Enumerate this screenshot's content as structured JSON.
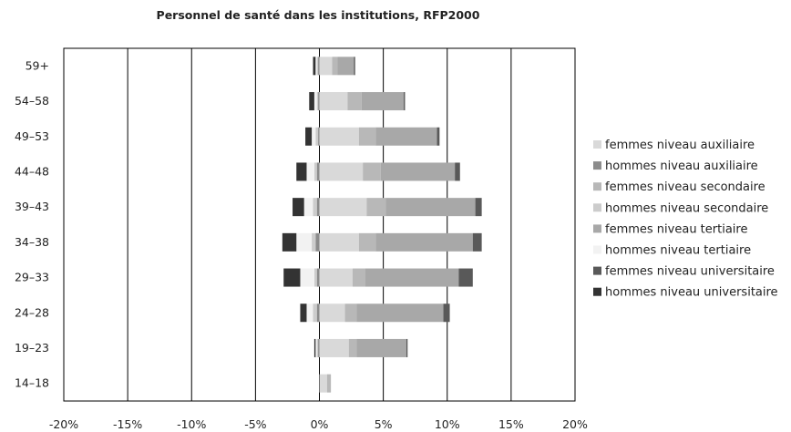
{
  "chart_data": {
    "type": "bar",
    "orientation": "horizontal",
    "stacked": true,
    "title": "Personnel de santé dans les institutions, RFP2000",
    "xlabel": "",
    "ylabel": "",
    "xlim": [
      -20,
      20
    ],
    "x_ticks": [
      -20,
      -15,
      -10,
      -5,
      0,
      5,
      10,
      15,
      20
    ],
    "x_tick_labels": [
      "-20%",
      "-15%",
      "-10%",
      "-5%",
      "0%",
      "5%",
      "10%",
      "15%",
      "20%"
    ],
    "grid": "vertical",
    "legend_position": "right",
    "categories": [
      "59+",
      "54–58",
      "49–53",
      "44–48",
      "39–43",
      "34–38",
      "29–33",
      "24–28",
      "19–23",
      "14–18"
    ],
    "series": [
      {
        "name": "femmes niveau auxiliaire",
        "color": "#d9d9d9",
        "side": "right",
        "values": [
          1.0,
          2.2,
          3.1,
          3.4,
          3.7,
          3.1,
          2.6,
          2.0,
          2.3,
          0.6
        ]
      },
      {
        "name": "hommes niveau auxiliaire",
        "color": "#8c8c8c",
        "side": "left",
        "values": [
          0.1,
          0.1,
          0.1,
          0.2,
          0.2,
          0.3,
          0.2,
          0.2,
          0.1,
          0.0
        ]
      },
      {
        "name": "femmes niveau secondaire",
        "color": "#b8b8b8",
        "side": "right",
        "values": [
          0.4,
          1.1,
          1.3,
          1.4,
          1.5,
          1.3,
          1.0,
          0.9,
          0.6,
          0.3
        ]
      },
      {
        "name": "hommes niveau secondaire",
        "color": "#cccccc",
        "side": "left",
        "values": [
          0.1,
          0.1,
          0.2,
          0.2,
          0.3,
          0.3,
          0.2,
          0.3,
          0.1,
          0.0
        ]
      },
      {
        "name": "femmes niveau tertiaire",
        "color": "#a8a8a8",
        "side": "right",
        "values": [
          1.3,
          3.3,
          4.8,
          5.8,
          7.0,
          7.6,
          7.3,
          6.8,
          3.9,
          0.0
        ]
      },
      {
        "name": "hommes niveau tertiaire",
        "color": "#f2f2f2",
        "side": "left",
        "values": [
          0.1,
          0.2,
          0.3,
          0.6,
          0.7,
          1.2,
          1.1,
          0.5,
          0.1,
          0.0
        ]
      },
      {
        "name": "femmes niveau universitaire",
        "color": "#595959",
        "side": "right",
        "values": [
          0.1,
          0.1,
          0.2,
          0.4,
          0.5,
          0.7,
          1.1,
          0.5,
          0.1,
          0.0
        ]
      },
      {
        "name": "hommes niveau universitaire",
        "color": "#333333",
        "side": "left",
        "values": [
          0.2,
          0.4,
          0.5,
          0.8,
          0.9,
          1.1,
          1.3,
          0.5,
          0.1,
          0.0
        ]
      }
    ]
  }
}
